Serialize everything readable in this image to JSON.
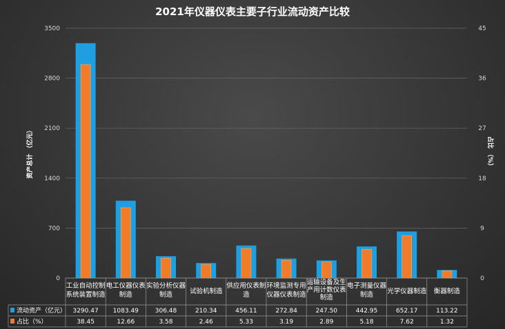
{
  "chart_data": {
    "type": "bar",
    "title": "2021年仪器仪表主要子行业流动资产比较",
    "ylabel": "资产总计 （亿元）",
    "y2label": "占比 （%）",
    "ylim": [
      0,
      3500
    ],
    "y2lim": [
      0,
      45
    ],
    "yticks": [
      "0",
      "700",
      "1400",
      "2100",
      "2800",
      "3500"
    ],
    "y2ticks": [
      "0",
      "9",
      "18",
      "27",
      "36",
      "45"
    ],
    "categories": [
      [
        "工业自动控制",
        "系统装置制造"
      ],
      [
        "电工仪器仪表",
        "制造"
      ],
      [
        "实验分析仪器",
        "制造"
      ],
      [
        "试验机制造"
      ],
      [
        "供应用仪表制",
        "造"
      ],
      [
        "环境监测专用",
        "仪器仪表制造"
      ],
      [
        "运输设备及生",
        "产用计数仪表",
        "制造"
      ],
      [
        "电子测量仪器",
        "制造"
      ],
      [
        "光学仪器制造"
      ],
      [
        "衡器制造"
      ]
    ],
    "series": [
      {
        "name": "流动资产（亿元）",
        "color": "#1f9fe0",
        "axis": "left",
        "values": [
          3290.47,
          1083.49,
          306.48,
          210.34,
          456.11,
          272.84,
          247.5,
          442.95,
          652.17,
          113.22
        ],
        "labels": [
          "3290.47",
          "1083.49",
          "306.48",
          "210.34",
          "456.11",
          "272.84",
          "247.50",
          "442.95",
          "652.17",
          "113.22"
        ]
      },
      {
        "name": "占比（%）",
        "color": "#f07c2a",
        "axis": "right",
        "values": [
          38.45,
          12.66,
          3.58,
          2.46,
          5.33,
          3.19,
          2.89,
          5.18,
          7.62,
          1.32
        ],
        "labels": [
          "38.45",
          "12.66",
          "3.58",
          "2.46",
          "5.33",
          "3.19",
          "2.89",
          "5.18",
          "7.62",
          "1.32"
        ]
      }
    ],
    "grid": true,
    "legend": "data-table"
  }
}
